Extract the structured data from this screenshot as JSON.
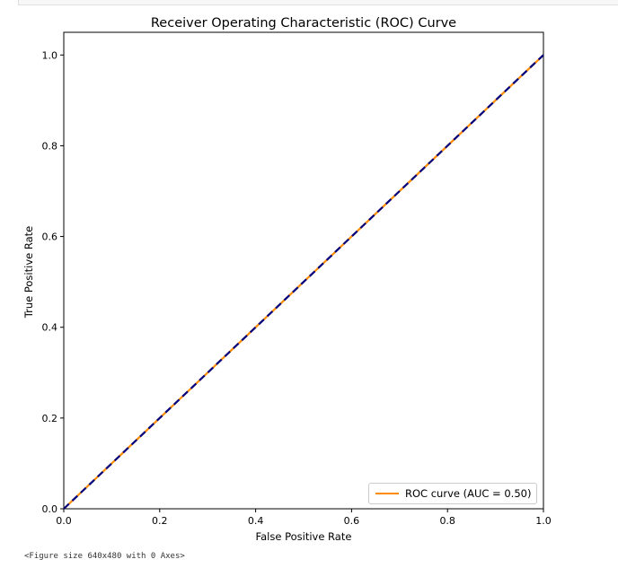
{
  "chart_data": {
    "type": "line",
    "title": "Receiver Operating Characteristic (ROC) Curve",
    "xlabel": "False Positive Rate",
    "ylabel": "True Positive Rate",
    "xlim": [
      0.0,
      1.0
    ],
    "ylim": [
      0.0,
      1.05
    ],
    "xticks": [
      "0.0",
      "0.2",
      "0.4",
      "0.6",
      "0.8",
      "1.0"
    ],
    "yticks": [
      "0.0",
      "0.2",
      "0.4",
      "0.6",
      "0.8",
      "1.0"
    ],
    "grid": false,
    "legend_position": "lower-right",
    "series": [
      {
        "name": "ROC curve (AUC = 0.50)",
        "x": [
          0.0,
          1.0
        ],
        "y": [
          0.0,
          1.0
        ],
        "color": "#ff8c00",
        "style": "solid"
      },
      {
        "x": [
          0.0,
          1.0
        ],
        "y": [
          0.0,
          1.0
        ],
        "color": "#000080",
        "style": "dashed"
      }
    ]
  },
  "footer": {
    "figure_text": "<Figure size 640x480 with 0 Axes>"
  }
}
